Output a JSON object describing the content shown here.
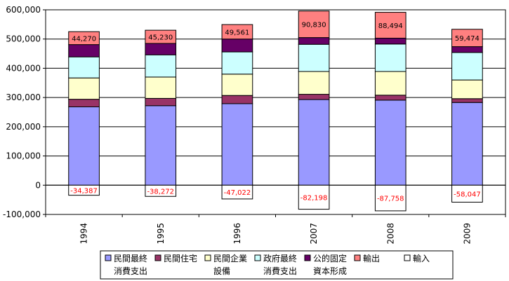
{
  "chart_data": {
    "type": "bar",
    "stacked": true,
    "categories": [
      "1994",
      "1995",
      "1996",
      "2007",
      "2008",
      "2009"
    ],
    "ylim": [
      -100000,
      600000
    ],
    "yticks": [
      -100000,
      0,
      100000,
      200000,
      300000,
      400000,
      500000,
      600000
    ],
    "ytick_labels": [
      "-100,000",
      "0",
      "100,000",
      "200,000",
      "300,000",
      "400,000",
      "500,000",
      "600,000"
    ],
    "grid": true,
    "legend_position": "bottom",
    "series": [
      {
        "name": "民間最終消費支出",
        "legend_lines": [
          "民間最終",
          "消費支出"
        ],
        "color": "#9999ff",
        "values": [
          268000,
          272000,
          279000,
          293000,
          291000,
          283000
        ]
      },
      {
        "name": "民間住宅",
        "legend_lines": [
          "民間住宅",
          ""
        ],
        "color": "#993366",
        "values": [
          26000,
          25000,
          28000,
          18000,
          17000,
          13000
        ]
      },
      {
        "name": "民間企業設備",
        "legend_lines": [
          "民間企業",
          "設備"
        ],
        "color": "#ffffcc",
        "values": [
          73000,
          73000,
          73000,
          78000,
          81000,
          64000
        ]
      },
      {
        "name": "政府最終消費支出",
        "legend_lines": [
          "政府最終",
          "消費支出"
        ],
        "color": "#ccffff",
        "values": [
          72000,
          76000,
          76000,
          93000,
          94000,
          94000
        ]
      },
      {
        "name": "公的固定資本形成",
        "legend_lines": [
          "公的固定",
          "資本形成"
        ],
        "color": "#660066",
        "values": [
          42000,
          39000,
          44000,
          23000,
          20000,
          20000
        ]
      },
      {
        "name": "輸出",
        "legend_lines": [
          "輸出",
          ""
        ],
        "color": "#ff8080",
        "values": [
          44270,
          45230,
          49561,
          90830,
          88494,
          59474
        ],
        "labels": [
          "44,270",
          "45,230",
          "49,561",
          "90,830",
          "88,494",
          "59,474"
        ]
      },
      {
        "name": "輸入",
        "legend_lines": [
          "輸入",
          ""
        ],
        "color": "#ffffff",
        "values": [
          -34387,
          -38272,
          -47022,
          -82198,
          -87758,
          -58047
        ],
        "labels": [
          "-34,387",
          "-38,272",
          "-47,022",
          "-82,198",
          "-87,758",
          "-58,047"
        ]
      }
    ]
  }
}
